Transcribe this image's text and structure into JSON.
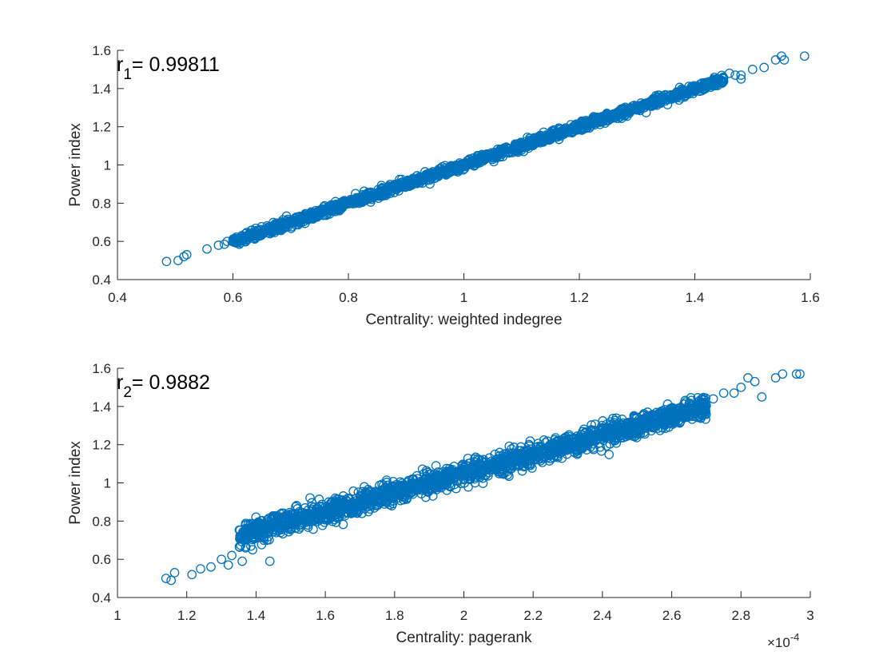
{
  "colors": {
    "marker": "#0072BD",
    "axis": "#262626"
  },
  "chart_data": [
    {
      "type": "scatter",
      "xlabel": "Centrality: weighted indegree",
      "ylabel": "Power index",
      "xlim": [
        0.4,
        1.6
      ],
      "ylim": [
        0.4,
        1.6
      ],
      "xticks": [
        "0.4",
        "0.6",
        "0.8",
        "1",
        "1.2",
        "1.4",
        "1.6"
      ],
      "yticks": [
        "0.4",
        "0.6",
        "0.8",
        "1",
        "1.2",
        "1.4",
        "1.6"
      ],
      "annotation": {
        "main": "r",
        "sub": "1",
        "rest": "= 0.99811"
      },
      "exponent_label": "",
      "grid": false,
      "marker": "open-circle",
      "points": [
        [
          0.485,
          0.495
        ],
        [
          0.505,
          0.5
        ],
        [
          0.515,
          0.52
        ],
        [
          0.52,
          0.53
        ],
        [
          0.555,
          0.56
        ],
        [
          0.575,
          0.58
        ],
        [
          0.585,
          0.585
        ],
        [
          0.59,
          0.6
        ],
        [
          0.6,
          0.605
        ],
        [
          0.62,
          0.62
        ],
        [
          1.46,
          1.48
        ],
        [
          1.47,
          1.47
        ],
        [
          1.48,
          1.45
        ],
        [
          1.48,
          1.47
        ],
        [
          1.5,
          1.5
        ],
        [
          1.52,
          1.51
        ],
        [
          1.54,
          1.55
        ],
        [
          1.55,
          1.57
        ],
        [
          1.555,
          1.55
        ],
        [
          1.59,
          1.57
        ]
      ],
      "band": {
        "n": 1500,
        "x": [
          0.6,
          1.45
        ],
        "slope": 1.0,
        "intercept": 0.0,
        "noise": 0.012
      }
    },
    {
      "type": "scatter",
      "xlabel": "Centrality: pagerank",
      "ylabel": "Power index",
      "xlim": [
        1,
        3
      ],
      "ylim": [
        0.4,
        1.6
      ],
      "xticks": [
        "1",
        "1.2",
        "1.4",
        "1.6",
        "1.8",
        "2",
        "2.2",
        "2.4",
        "2.6",
        "2.8",
        "3"
      ],
      "yticks": [
        "0.4",
        "0.6",
        "0.8",
        "1",
        "1.2",
        "1.4",
        "1.6"
      ],
      "annotation": {
        "main": "r",
        "sub": "2",
        "rest": "= 0.9882"
      },
      "exponent_label": {
        "base": "×10",
        "exp": "-4"
      },
      "grid": false,
      "marker": "open-circle",
      "points": [
        [
          1.14,
          0.5
        ],
        [
          1.155,
          0.49
        ],
        [
          1.165,
          0.53
        ],
        [
          1.215,
          0.52
        ],
        [
          1.24,
          0.55
        ],
        [
          1.27,
          0.56
        ],
        [
          1.3,
          0.6
        ],
        [
          1.32,
          0.57
        ],
        [
          1.33,
          0.62
        ],
        [
          1.36,
          0.59
        ],
        [
          1.44,
          0.59
        ],
        [
          1.39,
          0.65
        ],
        [
          2.68,
          1.43
        ],
        [
          2.72,
          1.44
        ],
        [
          2.75,
          1.47
        ],
        [
          2.8,
          1.5
        ],
        [
          2.82,
          1.55
        ],
        [
          2.84,
          1.53
        ],
        [
          2.86,
          1.45
        ],
        [
          2.9,
          1.55
        ],
        [
          2.92,
          1.57
        ],
        [
          2.96,
          1.57
        ],
        [
          2.97,
          1.57
        ],
        [
          2.78,
          1.47
        ]
      ],
      "band": {
        "n": 2000,
        "x": [
          1.35,
          2.7
        ],
        "slope": 0.5,
        "intercept": 0.05,
        "noise": 0.028
      }
    }
  ]
}
